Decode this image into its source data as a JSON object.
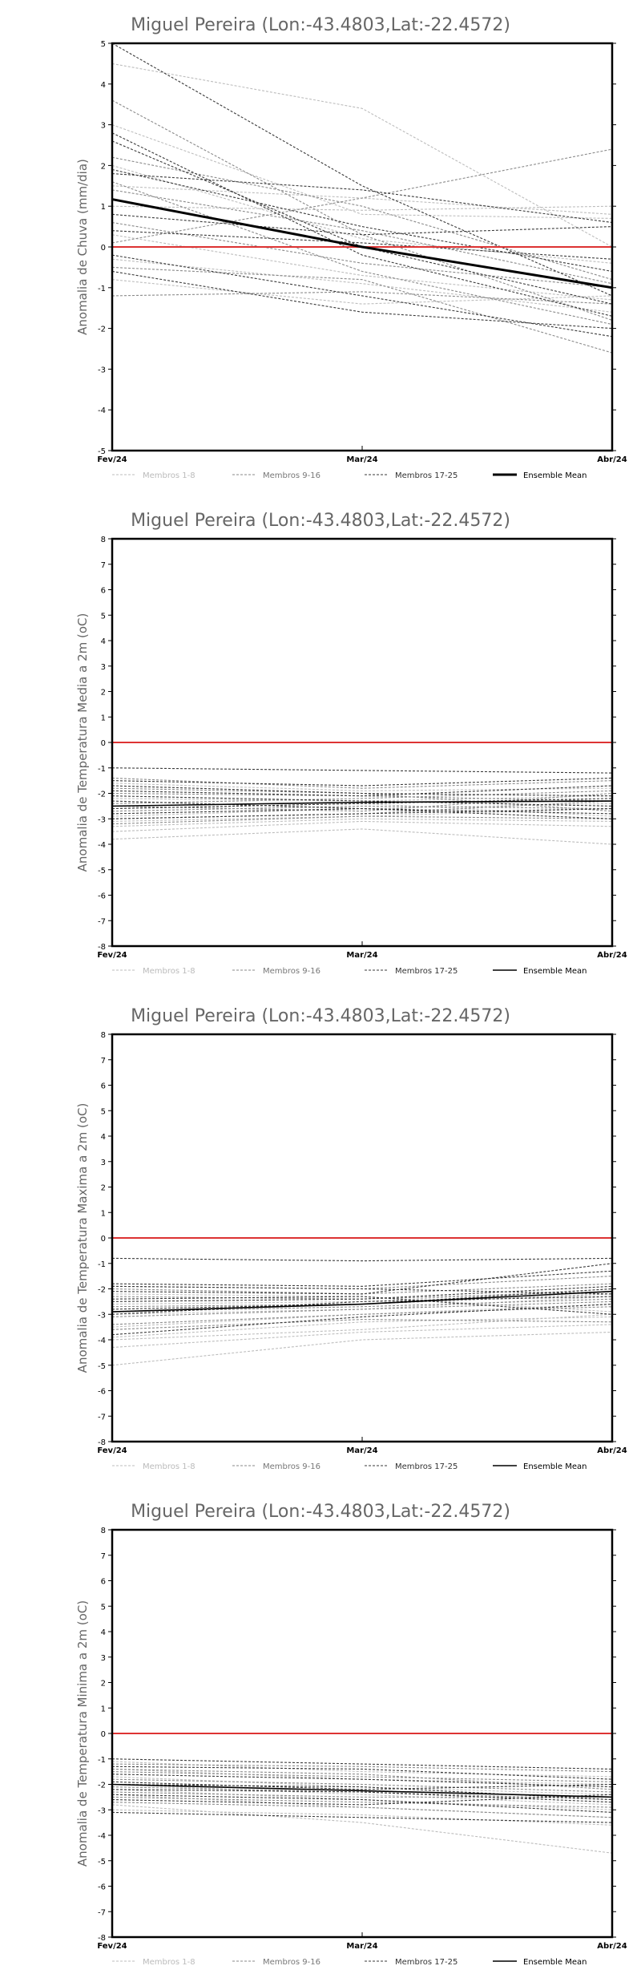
{
  "chart_data": [
    {
      "type": "line",
      "title": "Miguel Pereira (Lon:-43.4803,Lat:-22.4572)",
      "ylabel": "Anomalia de Chuva (mm/dia)",
      "categories": [
        "Fev/24",
        "Mar/24",
        "Abr/24"
      ],
      "ylim": [
        -5,
        5
      ],
      "yticks": [
        "-5",
        "-4",
        "-3",
        "-2",
        "-1",
        "0",
        "1",
        "2",
        "3",
        "4",
        "5"
      ],
      "legend": [
        "Membros 1-8",
        "Membros 9-16",
        "Membros 17-25",
        "Ensemble Mean"
      ],
      "mean_bold": true,
      "series": [
        {
          "group": 0,
          "values": [
            4.5,
            3.4,
            0.0
          ]
        },
        {
          "group": 0,
          "values": [
            3.0,
            0.8,
            0.7
          ]
        },
        {
          "group": 0,
          "values": [
            1.5,
            1.2,
            0.8
          ]
        },
        {
          "group": 0,
          "values": [
            0.3,
            -0.7,
            -1.3
          ]
        },
        {
          "group": 0,
          "values": [
            -0.3,
            -0.9,
            -1.6
          ]
        },
        {
          "group": 0,
          "values": [
            -0.8,
            -1.4,
            -1.2
          ]
        },
        {
          "group": 0,
          "values": [
            2.0,
            0.2,
            -0.4
          ]
        },
        {
          "group": 0,
          "values": [
            1.0,
            0.9,
            1.0
          ]
        },
        {
          "group": 1,
          "values": [
            3.6,
            0.3,
            -1.8
          ]
        },
        {
          "group": 1,
          "values": [
            2.2,
            1.0,
            -0.8
          ]
        },
        {
          "group": 1,
          "values": [
            0.6,
            -0.4,
            -1.0
          ]
        },
        {
          "group": 1,
          "values": [
            -0.5,
            -0.8,
            -2.6
          ]
        },
        {
          "group": 1,
          "values": [
            1.4,
            0.4,
            -0.9
          ]
        },
        {
          "group": 1,
          "values": [
            -1.2,
            -1.1,
            -1.4
          ]
        },
        {
          "group": 1,
          "values": [
            0.1,
            1.2,
            2.4
          ]
        },
        {
          "group": 1,
          "values": [
            1.6,
            -0.6,
            -1.9
          ]
        },
        {
          "group": 2,
          "values": [
            5.0,
            1.5,
            -1.2
          ]
        },
        {
          "group": 2,
          "values": [
            2.6,
            0.0,
            -1.4
          ]
        },
        {
          "group": 2,
          "values": [
            1.9,
            0.5,
            -0.6
          ]
        },
        {
          "group": 2,
          "values": [
            0.8,
            0.3,
            0.5
          ]
        },
        {
          "group": 2,
          "values": [
            -0.2,
            -1.2,
            -2.2
          ]
        },
        {
          "group": 2,
          "values": [
            -0.6,
            -1.6,
            -2.0
          ]
        },
        {
          "group": 2,
          "values": [
            2.8,
            -0.2,
            -1.7
          ]
        },
        {
          "group": 2,
          "values": [
            0.4,
            0.1,
            -0.3
          ]
        },
        {
          "group": 2,
          "values": [
            1.8,
            1.4,
            0.6
          ]
        }
      ],
      "mean": [
        1.17,
        0.0,
        -1.0
      ]
    },
    {
      "type": "line",
      "title": "Miguel Pereira (Lon:-43.4803,Lat:-22.4572)",
      "ylabel": "Anomalia de Temperatura Media a 2m (oC)",
      "categories": [
        "Fev/24",
        "Mar/24",
        "Abr/24"
      ],
      "ylim": [
        -8,
        8
      ],
      "yticks": [
        "-8",
        "-7",
        "-6",
        "-5",
        "-4",
        "-3",
        "-2",
        "-1",
        "0",
        "1",
        "2",
        "3",
        "4",
        "5",
        "6",
        "7",
        "8"
      ],
      "legend": [
        "Membros 1-8",
        "Membros 9-16",
        "Membros 17-25",
        "Ensemble Mean"
      ],
      "mean_bold": false,
      "series": [
        {
          "group": 0,
          "values": [
            -3.8,
            -3.4,
            -4.0
          ]
        },
        {
          "group": 0,
          "values": [
            -3.5,
            -3.1,
            -3.3
          ]
        },
        {
          "group": 0,
          "values": [
            -3.1,
            -2.9,
            -2.6
          ]
        },
        {
          "group": 0,
          "values": [
            -2.9,
            -2.6,
            -2.4
          ]
        },
        {
          "group": 0,
          "values": [
            -2.2,
            -2.3,
            -2.1
          ]
        },
        {
          "group": 0,
          "values": [
            -1.6,
            -1.9,
            -1.8
          ]
        },
        {
          "group": 0,
          "values": [
            -2.6,
            -2.4,
            -2.9
          ]
        },
        {
          "group": 0,
          "values": [
            -3.3,
            -3.0,
            -3.1
          ]
        },
        {
          "group": 1,
          "values": [
            -1.4,
            -1.8,
            -1.5
          ]
        },
        {
          "group": 1,
          "values": [
            -2.0,
            -2.1,
            -2.3
          ]
        },
        {
          "group": 1,
          "values": [
            -2.4,
            -2.2,
            -1.9
          ]
        },
        {
          "group": 1,
          "values": [
            -2.7,
            -2.5,
            -2.6
          ]
        },
        {
          "group": 1,
          "values": [
            -3.0,
            -2.8,
            -2.3
          ]
        },
        {
          "group": 1,
          "values": [
            -1.8,
            -2.0,
            -2.7
          ]
        },
        {
          "group": 1,
          "values": [
            -2.5,
            -2.7,
            -2.0
          ]
        },
        {
          "group": 1,
          "values": [
            -3.2,
            -2.9,
            -3.0
          ]
        },
        {
          "group": 2,
          "values": [
            -1.0,
            -1.1,
            -1.2
          ]
        },
        {
          "group": 2,
          "values": [
            -1.5,
            -1.7,
            -1.4
          ]
        },
        {
          "group": 2,
          "values": [
            -1.9,
            -2.1,
            -1.7
          ]
        },
        {
          "group": 2,
          "values": [
            -2.1,
            -2.3,
            -2.5
          ]
        },
        {
          "group": 2,
          "values": [
            -2.3,
            -2.6,
            -2.8
          ]
        },
        {
          "group": 2,
          "values": [
            -2.6,
            -2.4,
            -2.2
          ]
        },
        {
          "group": 2,
          "values": [
            -2.8,
            -2.6,
            -3.0
          ]
        },
        {
          "group": 2,
          "values": [
            -3.0,
            -2.8,
            -2.6
          ]
        },
        {
          "group": 2,
          "values": [
            -1.7,
            -2.0,
            -2.1
          ]
        }
      ],
      "mean": [
        -2.5,
        -2.35,
        -2.3
      ]
    },
    {
      "type": "line",
      "title": "Miguel Pereira (Lon:-43.4803,Lat:-22.4572)",
      "ylabel": "Anomalia de Temperatura Maxima a 2m (oC)",
      "categories": [
        "Fev/24",
        "Mar/24",
        "Abr/24"
      ],
      "ylim": [
        -8,
        8
      ],
      "yticks": [
        "-8",
        "-7",
        "-6",
        "-5",
        "-4",
        "-3",
        "-2",
        "-1",
        "0",
        "1",
        "2",
        "3",
        "4",
        "5",
        "6",
        "7",
        "8"
      ],
      "legend": [
        "Membros 1-8",
        "Membros 9-16",
        "Membros 17-25",
        "Ensemble Mean"
      ],
      "mean_bold": false,
      "series": [
        {
          "group": 0,
          "values": [
            -5.0,
            -4.0,
            -3.7
          ]
        },
        {
          "group": 0,
          "values": [
            -4.3,
            -3.7,
            -3.4
          ]
        },
        {
          "group": 0,
          "values": [
            -3.9,
            -3.3,
            -3.1
          ]
        },
        {
          "group": 0,
          "values": [
            -3.5,
            -3.0,
            -2.6
          ]
        },
        {
          "group": 0,
          "values": [
            -3.0,
            -2.8,
            -2.3
          ]
        },
        {
          "group": 0,
          "values": [
            -2.6,
            -2.5,
            -2.0
          ]
        },
        {
          "group": 0,
          "values": [
            -2.2,
            -2.3,
            -2.9
          ]
        },
        {
          "group": 0,
          "values": [
            -4.0,
            -3.6,
            -3.0
          ]
        },
        {
          "group": 1,
          "values": [
            -1.9,
            -2.0,
            -1.5
          ]
        },
        {
          "group": 1,
          "values": [
            -2.3,
            -2.4,
            -2.1
          ]
        },
        {
          "group": 1,
          "values": [
            -2.7,
            -2.6,
            -2.2
          ]
        },
        {
          "group": 1,
          "values": [
            -3.1,
            -2.8,
            -2.5
          ]
        },
        {
          "group": 1,
          "values": [
            -3.4,
            -3.0,
            -2.7
          ]
        },
        {
          "group": 1,
          "values": [
            -2.0,
            -2.2,
            -1.8
          ]
        },
        {
          "group": 1,
          "values": [
            -2.9,
            -2.7,
            -2.4
          ]
        },
        {
          "group": 1,
          "values": [
            -3.6,
            -3.2,
            -3.3
          ]
        },
        {
          "group": 2,
          "values": [
            -0.8,
            -0.9,
            -0.8
          ]
        },
        {
          "group": 2,
          "values": [
            -1.8,
            -1.9,
            -1.3
          ]
        },
        {
          "group": 2,
          "values": [
            -2.1,
            -2.2,
            -1.0
          ]
        },
        {
          "group": 2,
          "values": [
            -2.5,
            -2.4,
            -1.9
          ]
        },
        {
          "group": 2,
          "values": [
            -2.8,
            -2.6,
            -2.0
          ]
        },
        {
          "group": 2,
          "values": [
            -3.0,
            -2.5,
            -2.3
          ]
        },
        {
          "group": 2,
          "values": [
            -3.8,
            -3.1,
            -2.6
          ]
        },
        {
          "group": 2,
          "values": [
            -2.4,
            -2.3,
            -3.0
          ]
        },
        {
          "group": 2,
          "values": [
            -1.9,
            -2.0,
            -2.2
          ]
        }
      ],
      "mean": [
        -2.9,
        -2.6,
        -2.1
      ]
    },
    {
      "type": "line",
      "title": "Miguel Pereira (Lon:-43.4803,Lat:-22.4572)",
      "ylabel": "Anomalia de Temperatura Minima a 2m (oC)",
      "categories": [
        "Fev/24",
        "Mar/24",
        "Abr/24"
      ],
      "ylim": [
        -8,
        8
      ],
      "yticks": [
        "-8",
        "-7",
        "-6",
        "-5",
        "-4",
        "-3",
        "-2",
        "-1",
        "0",
        "1",
        "2",
        "3",
        "4",
        "5",
        "6",
        "7",
        "8"
      ],
      "legend": [
        "Membros 1-8",
        "Membros 9-16",
        "Membros 17-25",
        "Ensemble Mean"
      ],
      "mean_bold": false,
      "series": [
        {
          "group": 0,
          "values": [
            -2.8,
            -3.5,
            -4.7
          ]
        },
        {
          "group": 0,
          "values": [
            -2.4,
            -2.9,
            -3.3
          ]
        },
        {
          "group": 0,
          "values": [
            -2.0,
            -2.4,
            -2.8
          ]
        },
        {
          "group": 0,
          "values": [
            -1.7,
            -2.1,
            -2.4
          ]
        },
        {
          "group": 0,
          "values": [
            -1.4,
            -1.8,
            -2.0
          ]
        },
        {
          "group": 0,
          "values": [
            -1.1,
            -1.5,
            -1.7
          ]
        },
        {
          "group": 0,
          "values": [
            -3.0,
            -3.2,
            -3.6
          ]
        },
        {
          "group": 0,
          "values": [
            -2.2,
            -2.6,
            -3.0
          ]
        },
        {
          "group": 1,
          "values": [
            -1.2,
            -1.3,
            -1.5
          ]
        },
        {
          "group": 1,
          "values": [
            -1.5,
            -1.7,
            -1.9
          ]
        },
        {
          "group": 1,
          "values": [
            -1.8,
            -2.0,
            -2.3
          ]
        },
        {
          "group": 1,
          "values": [
            -2.1,
            -2.3,
            -2.6
          ]
        },
        {
          "group": 1,
          "values": [
            -2.5,
            -2.7,
            -2.9
          ]
        },
        {
          "group": 1,
          "values": [
            -2.7,
            -2.9,
            -3.3
          ]
        },
        {
          "group": 1,
          "values": [
            -1.4,
            -1.6,
            -2.2
          ]
        },
        {
          "group": 1,
          "values": [
            -2.3,
            -2.5,
            -2.5
          ]
        },
        {
          "group": 2,
          "values": [
            -1.0,
            -1.2,
            -1.4
          ]
        },
        {
          "group": 2,
          "values": [
            -1.6,
            -1.8,
            -2.1
          ]
        },
        {
          "group": 2,
          "values": [
            -1.9,
            -2.2,
            -2.0
          ]
        },
        {
          "group": 2,
          "values": [
            -2.2,
            -2.3,
            -2.7
          ]
        },
        {
          "group": 2,
          "values": [
            -2.4,
            -2.6,
            -3.1
          ]
        },
        {
          "group": 2,
          "values": [
            -2.6,
            -2.8,
            -2.4
          ]
        },
        {
          "group": 2,
          "values": [
            -3.1,
            -3.3,
            -3.5
          ]
        },
        {
          "group": 2,
          "values": [
            -1.3,
            -1.4,
            -1.8
          ]
        },
        {
          "group": 2,
          "values": [
            -2.0,
            -2.1,
            -2.6
          ]
        }
      ],
      "mean": [
        -2.0,
        -2.25,
        -2.5
      ]
    }
  ]
}
